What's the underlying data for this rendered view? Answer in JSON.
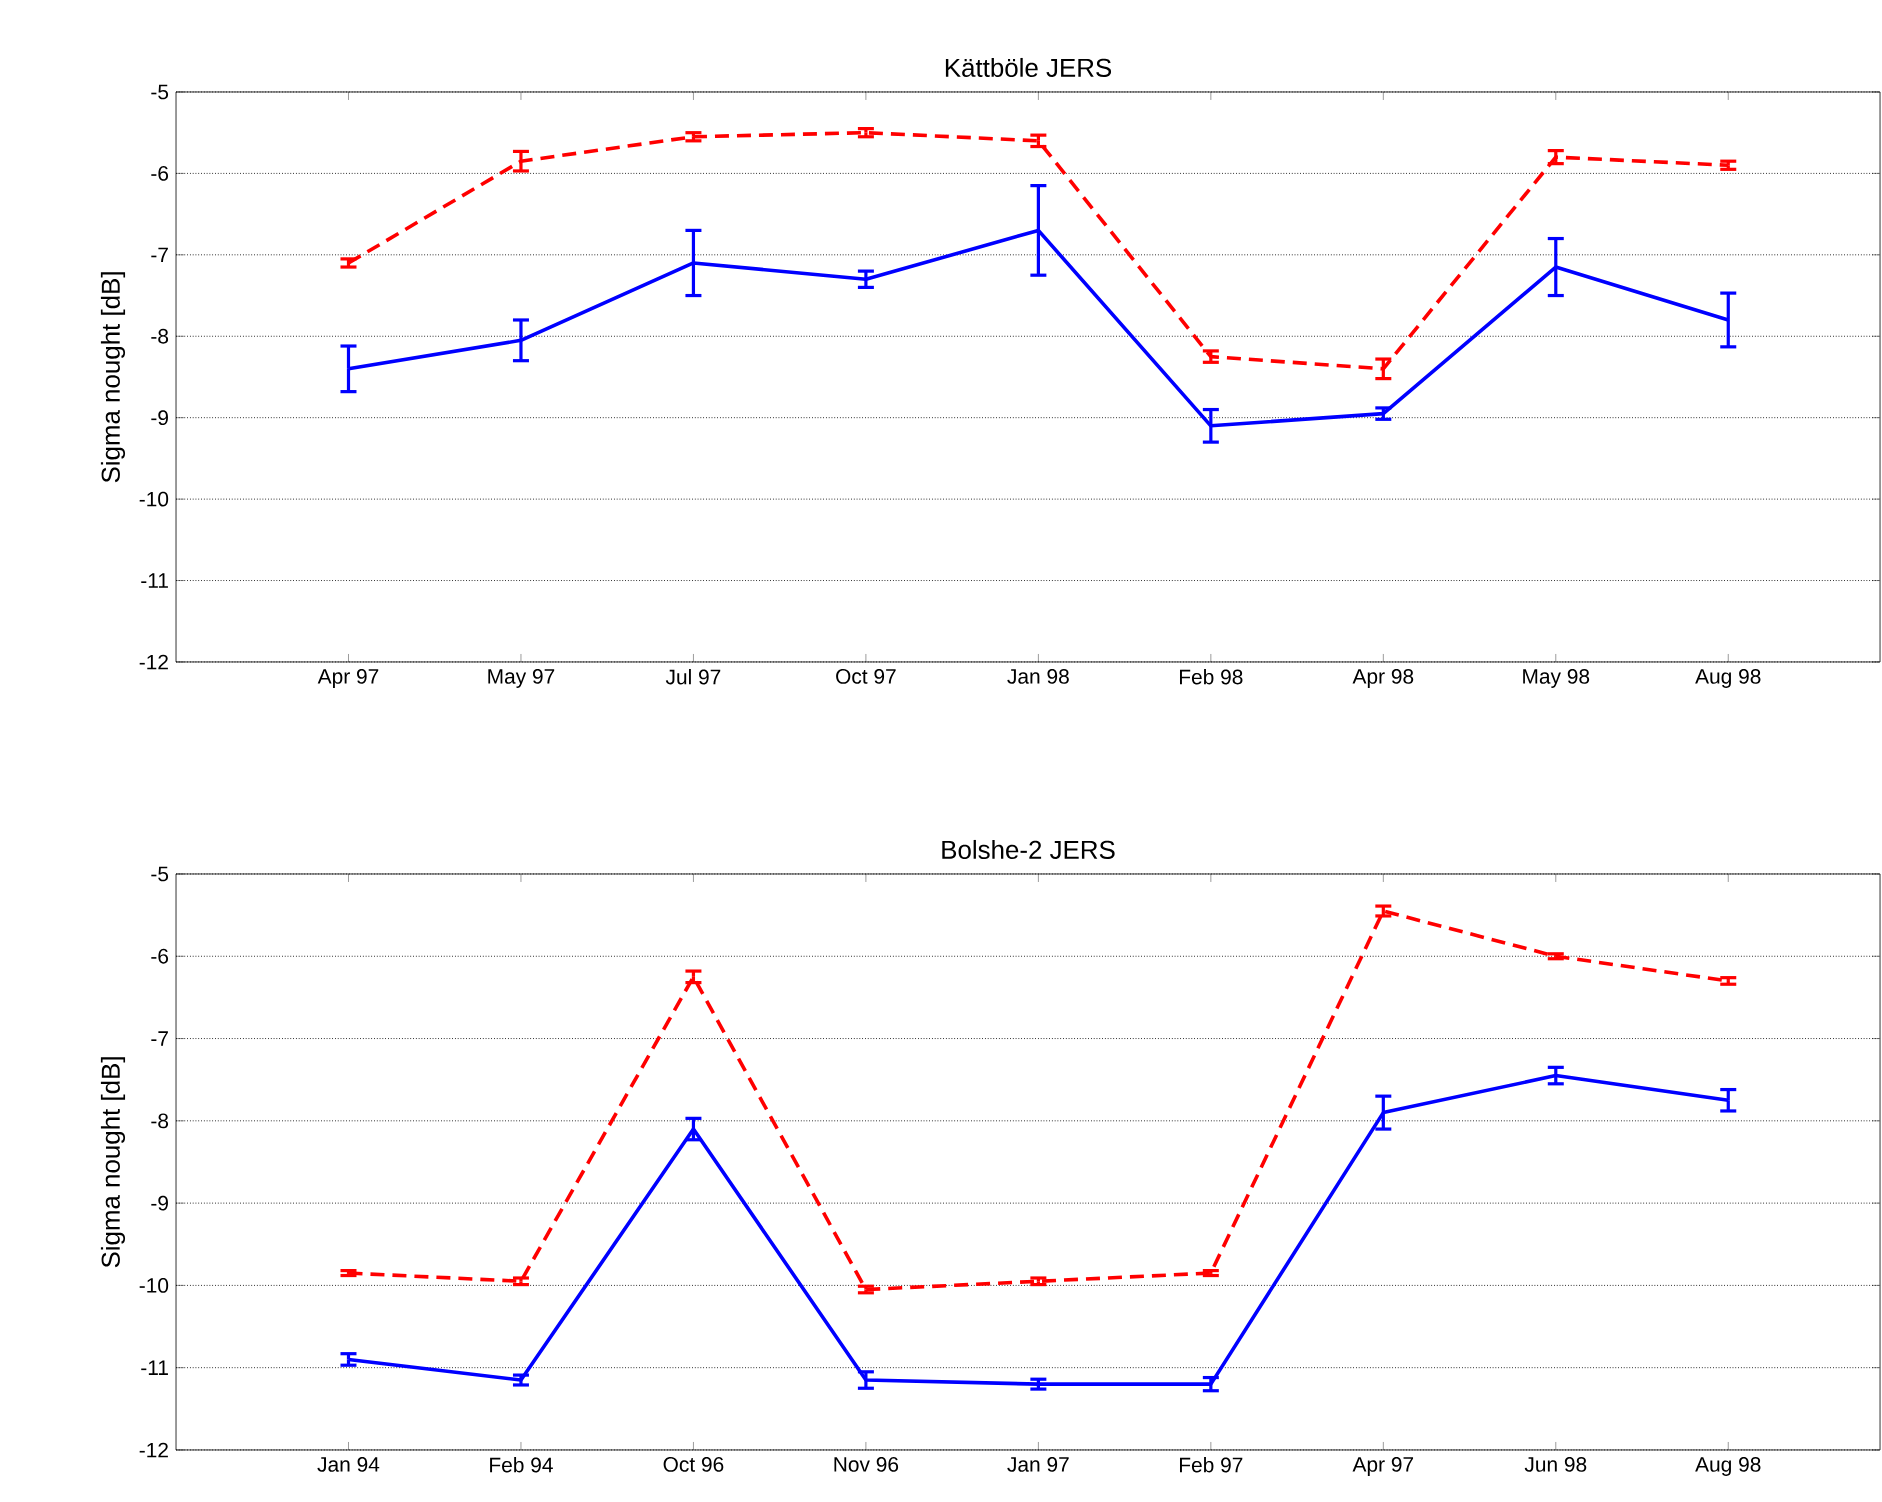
{
  "chart_data": [
    {
      "type": "line",
      "title": "Kättböle JERS",
      "ylabel": "Sigma nought [dB]",
      "categories": [
        "Apr 97",
        "May 97",
        "Jul 97",
        "Oct 97",
        "Jan 98",
        "Feb 98",
        "Apr 98",
        "May 98",
        "Aug 98"
      ],
      "ylim": [
        -12,
        -5
      ],
      "yticks": [
        -12,
        -11,
        -10,
        -9,
        -8,
        -7,
        -6,
        -5
      ],
      "grid": "y",
      "marker": "none",
      "series": [
        {
          "color": "#ff0000",
          "line_style": "dashed",
          "values": [
            -7.1,
            -5.85,
            -5.55,
            -5.5,
            -5.6,
            -8.25,
            -8.4,
            -5.8,
            -5.9
          ],
          "errors": [
            0.05,
            0.12,
            0.05,
            0.05,
            0.07,
            0.07,
            0.12,
            0.08,
            0.05
          ]
        },
        {
          "color": "#0000ff",
          "line_style": "solid",
          "values": [
            -8.4,
            -8.05,
            -7.1,
            -7.3,
            -6.7,
            -9.1,
            -8.95,
            -7.15,
            -7.8
          ],
          "errors": [
            0.28,
            0.25,
            0.4,
            0.1,
            0.55,
            0.2,
            0.07,
            0.35,
            0.33
          ]
        }
      ]
    },
    {
      "type": "line",
      "title": "Bolshe-2 JERS",
      "ylabel": "Sigma nought [dB]",
      "categories": [
        "Jan 94",
        "Feb 94",
        "Oct 96",
        "Nov 96",
        "Jan 97",
        "Feb 97",
        "Apr 97",
        "Jun 98",
        "Aug 98"
      ],
      "ylim": [
        -12,
        -5
      ],
      "yticks": [
        -12,
        -11,
        -10,
        -9,
        -8,
        -7,
        -6,
        -5
      ],
      "grid": "y",
      "marker": "none",
      "series": [
        {
          "color": "#ff0000",
          "line_style": "dashed",
          "values": [
            -9.85,
            -9.95,
            -6.25,
            -10.05,
            -9.95,
            -9.85,
            -5.45,
            -6.0,
            -6.3
          ],
          "errors": [
            0.03,
            0.04,
            0.07,
            0.04,
            0.04,
            0.03,
            0.06,
            0.03,
            0.04
          ]
        },
        {
          "color": "#0000ff",
          "line_style": "solid",
          "values": [
            -10.9,
            -11.15,
            -8.1,
            -11.15,
            -11.2,
            -11.2,
            -7.9,
            -7.45,
            -7.75
          ],
          "errors": [
            0.07,
            0.06,
            0.13,
            0.1,
            0.06,
            0.08,
            0.2,
            0.1,
            0.13
          ]
        }
      ]
    }
  ]
}
